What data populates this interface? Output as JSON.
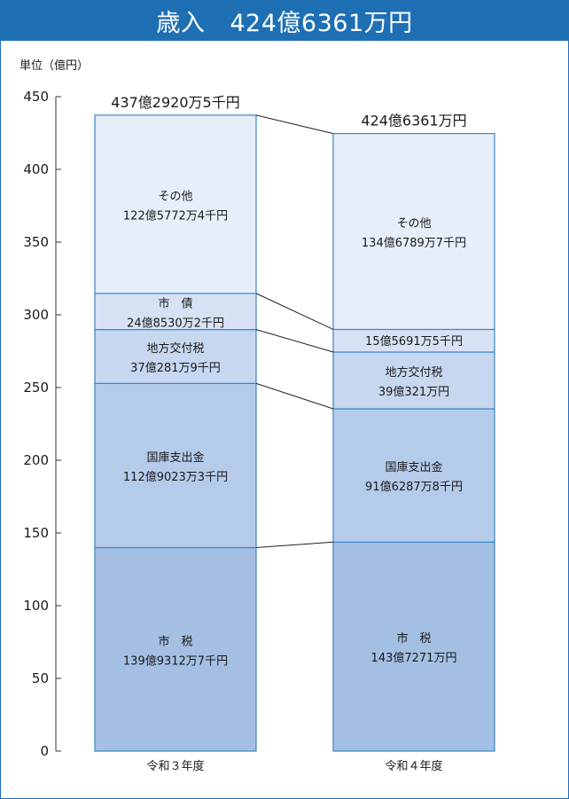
{
  "header": {
    "title_word": "歳入",
    "title_amount": "424億6361万円"
  },
  "chart_data": {
    "type": "bar",
    "stacked": true,
    "unit_label": "単位（億円）",
    "ylim": [
      0,
      450
    ],
    "yticks": [
      0,
      50,
      100,
      150,
      200,
      250,
      300,
      350,
      400,
      450
    ],
    "categories": [
      "令和３年度",
      "令和４年度"
    ],
    "totals": [
      "437億2920万5千円",
      "424億6361万円"
    ],
    "total_values": [
      437.29,
      424.64
    ],
    "series": [
      {
        "name": "市　税",
        "values": [
          139.93,
          143.73
        ],
        "labels": [
          "139億9312万7千円",
          "143億7271万円"
        ],
        "color": "#a3bfe3"
      },
      {
        "name": "国庫支出金",
        "values": [
          112.9,
          91.63
        ],
        "labels": [
          "112億9023万3千円",
          "91億6287万8千円"
        ],
        "color": "#b4cbea"
      },
      {
        "name": "地方交付税",
        "values": [
          37.03,
          39.03
        ],
        "labels": [
          "37億281万9千円",
          "39億321万円"
        ],
        "color": "#c6d7ef"
      },
      {
        "name": "市　債",
        "values": [
          24.85,
          15.57
        ],
        "labels": [
          "24億8530万2千円",
          "15億5691万5千円"
        ],
        "color": "#d6e2f4"
      },
      {
        "name": "その他",
        "values": [
          122.58,
          134.68
        ],
        "labels": [
          "122億5772万4千円",
          "134億6789万7千円"
        ],
        "color": "#e6eef9"
      }
    ],
    "colors": {
      "title_bar": "#1f6fb5",
      "bar_border": "#3a86c8",
      "axis": "#333333"
    }
  }
}
